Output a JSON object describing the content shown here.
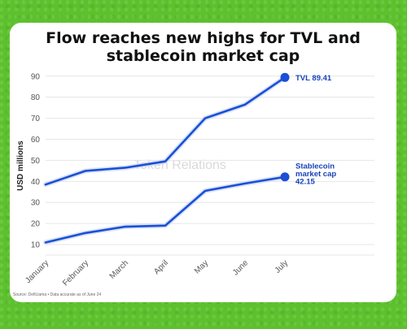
{
  "chart_data": {
    "type": "line",
    "title": "Flow reaches new highs for TVL and stablecoin market cap",
    "ylabel": "USD millions",
    "xlabel": "",
    "categories": [
      "January",
      "February",
      "March",
      "April",
      "May",
      "June",
      "July"
    ],
    "yticks": [
      10,
      20,
      30,
      40,
      50,
      60,
      70,
      80,
      90
    ],
    "ylim": [
      5,
      93
    ],
    "series": [
      {
        "name": "TVL",
        "values": [
          38.5,
          45,
          46.5,
          49.5,
          70,
          76.5,
          89.41
        ],
        "end_label": "TVL 89.41"
      },
      {
        "name": "Stablecoin market cap",
        "values": [
          11,
          15.5,
          18.5,
          19,
          35.5,
          39,
          42.15
        ],
        "end_label": [
          "Stablecoin",
          "market cap",
          "42.15"
        ]
      }
    ],
    "line_color": "#1a4fd6",
    "grid": "horizontal",
    "watermark": "Token Relations",
    "source": "Source: DefiLlama • Data accurate as of June 24"
  }
}
